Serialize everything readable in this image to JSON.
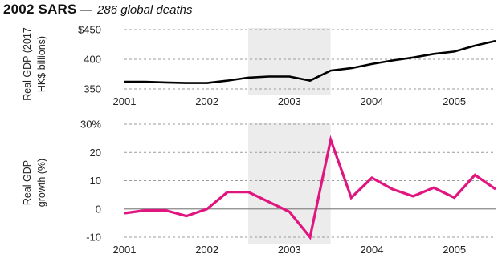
{
  "header": {
    "title": "2002 SARS",
    "separator": "—",
    "subtitle": "286 global deaths"
  },
  "chart_data": [
    {
      "type": "line",
      "ylabel_lines": [
        "Real GDP (2017",
        "HK$ billions)"
      ],
      "ylim": [
        350,
        450
      ],
      "yticks": [
        350,
        400,
        450
      ],
      "ytick_labels": [
        "350",
        "400",
        "$450"
      ],
      "xlim": [
        2001.0,
        2005.5
      ],
      "xticks": [
        2001,
        2002,
        2003,
        2004,
        2005
      ],
      "xtick_labels": [
        "2001",
        "2002",
        "2003",
        "2004",
        "2005"
      ],
      "highlight_range": [
        2002.5,
        2003.5
      ],
      "grid": true,
      "series": [
        {
          "color": "#000000",
          "x": [
            2001.0,
            2001.25,
            2001.5,
            2001.75,
            2002.0,
            2002.25,
            2002.5,
            2002.75,
            2003.0,
            2003.25,
            2003.5,
            2003.75,
            2004.0,
            2004.25,
            2004.5,
            2004.75,
            2005.0,
            2005.25,
            2005.5
          ],
          "values": [
            362,
            362,
            361,
            360,
            360,
            364,
            369,
            371,
            371,
            364,
            381,
            385,
            392,
            398,
            403,
            409,
            413,
            423,
            431
          ]
        }
      ]
    },
    {
      "type": "line",
      "ylabel_lines": [
        "Real GDP",
        "growth (%)"
      ],
      "ylim": [
        -10,
        30
      ],
      "yticks": [
        -10,
        0,
        10,
        20,
        30
      ],
      "ytick_labels": [
        "-10",
        "0",
        "10",
        "20",
        "30%"
      ],
      "xlim": [
        2001.0,
        2005.5
      ],
      "xticks": [
        2001,
        2002,
        2003,
        2004,
        2005
      ],
      "xtick_labels": [
        "2001",
        "2002",
        "2003",
        "2004",
        "2005"
      ],
      "highlight_range": [
        2002.5,
        2003.5
      ],
      "grid": true,
      "series": [
        {
          "color": "#e0157f",
          "x": [
            2001.0,
            2001.25,
            2001.5,
            2001.75,
            2002.0,
            2002.25,
            2002.5,
            2002.75,
            2003.0,
            2003.25,
            2003.5,
            2003.75,
            2004.0,
            2004.25,
            2004.5,
            2004.75,
            2005.0,
            2005.25,
            2005.5
          ],
          "values": [
            -1.5,
            -0.5,
            -0.5,
            -2.5,
            0,
            6,
            6,
            2.5,
            -1,
            -10,
            24.5,
            4,
            11,
            7,
            4.5,
            7.5,
            4,
            12,
            7
          ]
        }
      ]
    }
  ]
}
